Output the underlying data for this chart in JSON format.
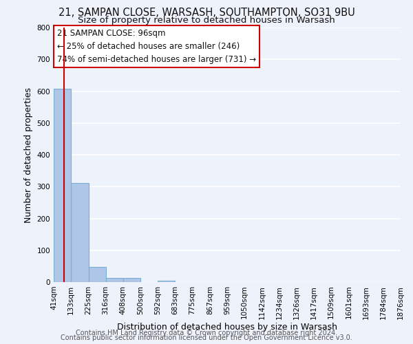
{
  "title_line1": "21, SAMPAN CLOSE, WARSASH, SOUTHAMPTON, SO31 9BU",
  "title_line2": "Size of property relative to detached houses in Warsash",
  "xlabel": "Distribution of detached houses by size in Warsash",
  "ylabel": "Number of detached properties",
  "footer_line1": "Contains HM Land Registry data © Crown copyright and database right 2024.",
  "footer_line2": "Contains public sector information licensed under the Open Government Licence v3.0.",
  "bin_edges": [
    41,
    133,
    225,
    316,
    408,
    500,
    592,
    683,
    775,
    867,
    959,
    1050,
    1142,
    1234,
    1326,
    1417,
    1509,
    1601,
    1693,
    1784,
    1876
  ],
  "bin_labels": [
    "41sqm",
    "133sqm",
    "225sqm",
    "316sqm",
    "408sqm",
    "500sqm",
    "592sqm",
    "683sqm",
    "775sqm",
    "867sqm",
    "959sqm",
    "1050sqm",
    "1142sqm",
    "1234sqm",
    "1326sqm",
    "1417sqm",
    "1509sqm",
    "1601sqm",
    "1693sqm",
    "1784sqm",
    "1876sqm"
  ],
  "bar_heights": [
    607,
    311,
    48,
    13,
    13,
    0,
    5,
    0,
    0,
    0,
    0,
    0,
    0,
    0,
    0,
    0,
    0,
    0,
    0,
    0
  ],
  "bar_color": "#aec6e8",
  "bar_edge_color": "#7aafd4",
  "property_line_x": 96,
  "property_line_color": "#cc0000",
  "annotation_line1": "21 SAMPAN CLOSE: 96sqm",
  "annotation_line2": "← 25% of detached houses are smaller (246)",
  "annotation_line3": "74% of semi-detached houses are larger (731) →",
  "ylim": [
    0,
    800
  ],
  "yticks": [
    0,
    100,
    200,
    300,
    400,
    500,
    600,
    700,
    800
  ],
  "background_color": "#eef2fb",
  "grid_color": "#ffffff",
  "title_fontsize": 10.5,
  "subtitle_fontsize": 9.5,
  "axis_label_fontsize": 9,
  "tick_fontsize": 7.5,
  "footer_fontsize": 7,
  "annot_fontsize": 8.5
}
